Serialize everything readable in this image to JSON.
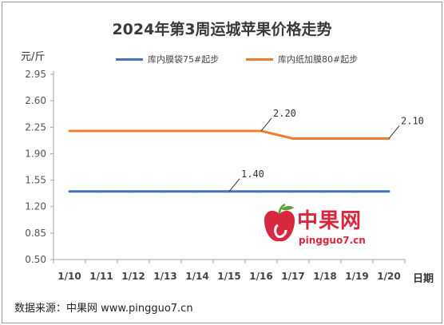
{
  "chart_data": {
    "type": "line",
    "title": "2024年第3周运城苹果价格走势",
    "ylabel": "元/斤",
    "xlabel": "日期",
    "categories": [
      "1/10",
      "1/11",
      "1/12",
      "1/13",
      "1/14",
      "1/15",
      "1/16",
      "1/17",
      "1/18",
      "1/19",
      "1/20"
    ],
    "ylim": [
      0.5,
      2.95
    ],
    "yticks": [
      "2.95",
      "2.60",
      "2.25",
      "1.90",
      "1.55",
      "1.20",
      "0.85",
      "0.50"
    ],
    "grid": false,
    "legend_position": "top",
    "series": [
      {
        "name": "库内膜袋75#起步",
        "color": "#4472c4",
        "values": [
          1.4,
          1.4,
          1.4,
          1.4,
          1.4,
          1.4,
          1.4,
          1.4,
          1.4,
          1.4,
          1.4
        ]
      },
      {
        "name": "库内纸加膜80#起步",
        "color": "#ed7d31",
        "values": [
          2.2,
          2.2,
          2.2,
          2.2,
          2.2,
          2.2,
          2.2,
          2.1,
          2.1,
          2.1,
          2.1
        ]
      }
    ],
    "annotations": [
      {
        "series": 1,
        "index": 6,
        "text": "2.20"
      },
      {
        "series": 1,
        "index": 10,
        "text": "2.10"
      },
      {
        "series": 0,
        "index": 5,
        "text": "1.40"
      }
    ]
  },
  "source": "数据来源：中果网 www.pingguo7.cn",
  "logo": {
    "name": "中果网",
    "url": "pingguo7.cn"
  }
}
